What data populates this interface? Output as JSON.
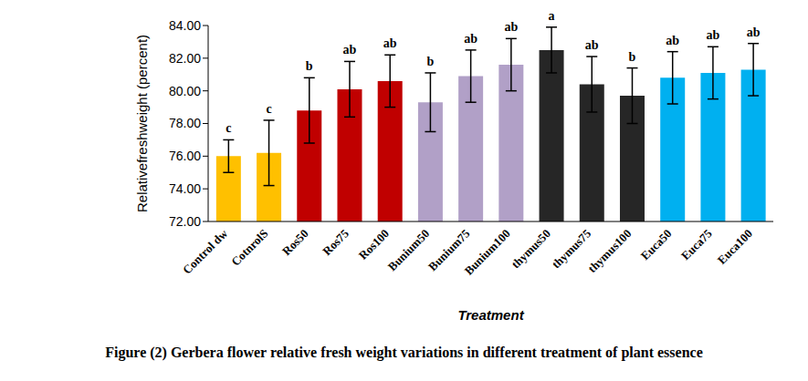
{
  "chart_data": {
    "type": "bar",
    "title": "Figure (2) Gerbera flower relative fresh weight variations in different treatment of plant essence",
    "x_label": "Treatment",
    "y_label": "Relativefreshweight (percent)",
    "categories": [
      "Control dw",
      "CotnrolS",
      "Ros50",
      "Ros75",
      "Ros100",
      "Bunium50",
      "Bunium75",
      "Bunium100",
      "thymus50",
      "thymus75",
      "thymus100",
      "Euca50",
      "Euca75",
      "Euca100"
    ],
    "values": [
      76.0,
      76.2,
      78.8,
      80.1,
      80.6,
      79.3,
      80.9,
      81.6,
      82.5,
      80.4,
      79.7,
      80.8,
      81.1,
      81.3
    ],
    "errors": [
      1.0,
      2.0,
      2.0,
      1.7,
      1.6,
      1.8,
      1.6,
      1.6,
      1.4,
      1.7,
      1.7,
      1.6,
      1.6,
      1.6
    ],
    "annotations": [
      "c",
      "c",
      "b",
      "ab",
      "ab",
      "b",
      "ab",
      "ab",
      "a",
      "ab",
      "b",
      "ab",
      "ab",
      "ab"
    ],
    "colors": [
      "#FFC000",
      "#FFC000",
      "#C00000",
      "#C00000",
      "#C00000",
      "#B1A0C7",
      "#B1A0C7",
      "#B1A0C7",
      "#262626",
      "#262626",
      "#262626",
      "#00B0F0",
      "#00B0F0",
      "#00B0F0"
    ],
    "ylim": [
      72,
      84
    ],
    "yticks": [
      {
        "value": 72,
        "label": "72.00"
      },
      {
        "value": 74,
        "label": "74.00"
      },
      {
        "value": 76,
        "label": "76.00"
      },
      {
        "value": 78,
        "label": "78.00"
      },
      {
        "value": 80,
        "label": "80.00"
      },
      {
        "value": 82,
        "label": "82.00"
      },
      {
        "value": 84,
        "label": "84.00"
      }
    ],
    "grid": false
  }
}
